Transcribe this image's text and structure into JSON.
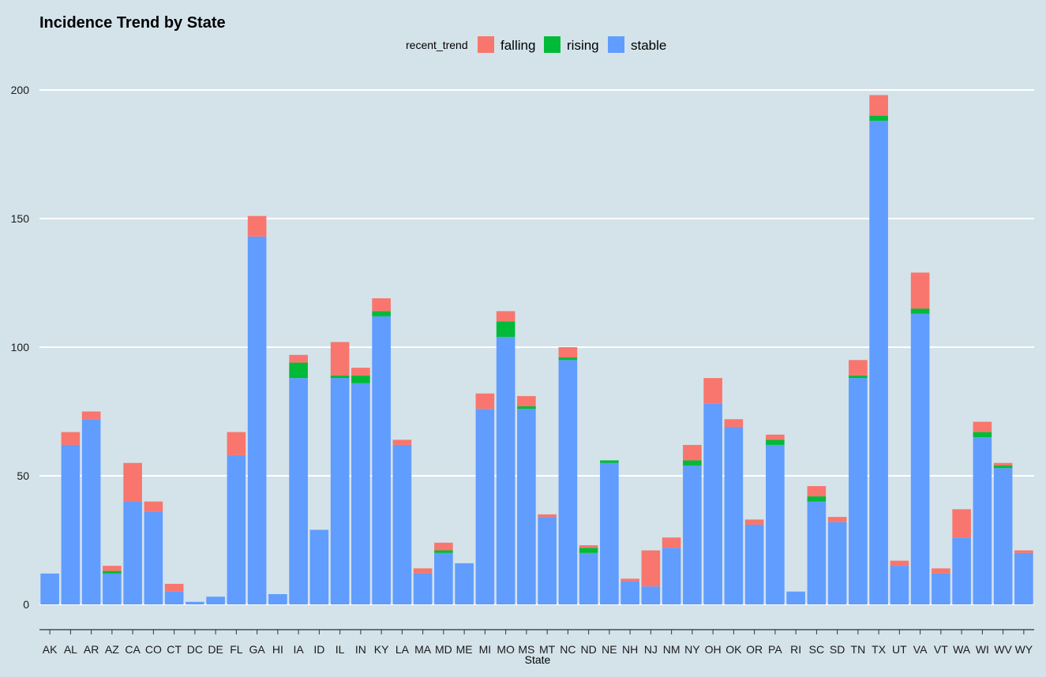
{
  "chart_data": {
    "type": "bar",
    "stacked": true,
    "title": "Incidence Trend by State",
    "xlabel": "State",
    "ylabel": "",
    "ylim": [
      -20,
      204
    ],
    "yticks": [
      0,
      50,
      100,
      150,
      200
    ],
    "grid": "horizontal",
    "legend_title": "recent_trend",
    "legend_position": "top",
    "categories": [
      "AK",
      "AL",
      "AR",
      "AZ",
      "CA",
      "CO",
      "CT",
      "DC",
      "DE",
      "FL",
      "GA",
      "HI",
      "IA",
      "ID",
      "IL",
      "IN",
      "KY",
      "LA",
      "MA",
      "MD",
      "ME",
      "MI",
      "MO",
      "MS",
      "MT",
      "NC",
      "ND",
      "NE",
      "NH",
      "NJ",
      "NM",
      "NY",
      "OH",
      "OK",
      "OR",
      "PA",
      "RI",
      "SC",
      "SD",
      "TN",
      "TX",
      "UT",
      "VA",
      "VT",
      "WA",
      "WI",
      "WV",
      "WY"
    ],
    "series": [
      {
        "name": "stable",
        "color": "#619cff",
        "values": [
          12,
          62,
          72,
          12,
          40,
          36,
          5,
          1,
          3,
          58,
          143,
          4,
          88,
          29,
          88,
          86,
          112,
          62,
          12,
          20,
          16,
          76,
          104,
          76,
          34,
          95,
          20,
          55,
          9,
          7,
          22,
          54,
          78,
          69,
          31,
          62,
          5,
          40,
          32,
          88,
          188,
          15,
          113,
          12,
          26,
          65,
          53,
          20
        ]
      },
      {
        "name": "rising",
        "color": "#00ba38",
        "values": [
          0,
          0,
          0,
          1,
          0,
          0,
          0,
          0,
          0,
          0,
          0,
          0,
          6,
          0,
          1,
          3,
          2,
          0,
          0,
          1,
          0,
          0,
          6,
          1,
          0,
          1,
          2,
          1,
          0,
          0,
          0,
          2,
          0,
          0,
          0,
          2,
          0,
          2,
          0,
          1,
          2,
          0,
          2,
          0,
          0,
          2,
          1,
          0
        ]
      },
      {
        "name": "falling",
        "color": "#f8766d",
        "values": [
          0,
          5,
          3,
          2,
          15,
          4,
          3,
          0,
          0,
          9,
          8,
          0,
          3,
          0,
          13,
          3,
          5,
          2,
          2,
          3,
          0,
          6,
          4,
          4,
          1,
          4,
          1,
          0,
          1,
          14,
          4,
          6,
          10,
          3,
          2,
          2,
          0,
          4,
          2,
          6,
          8,
          2,
          14,
          2,
          11,
          4,
          1,
          1
        ]
      }
    ],
    "legend_order": [
      "falling",
      "rising",
      "stable"
    ]
  }
}
